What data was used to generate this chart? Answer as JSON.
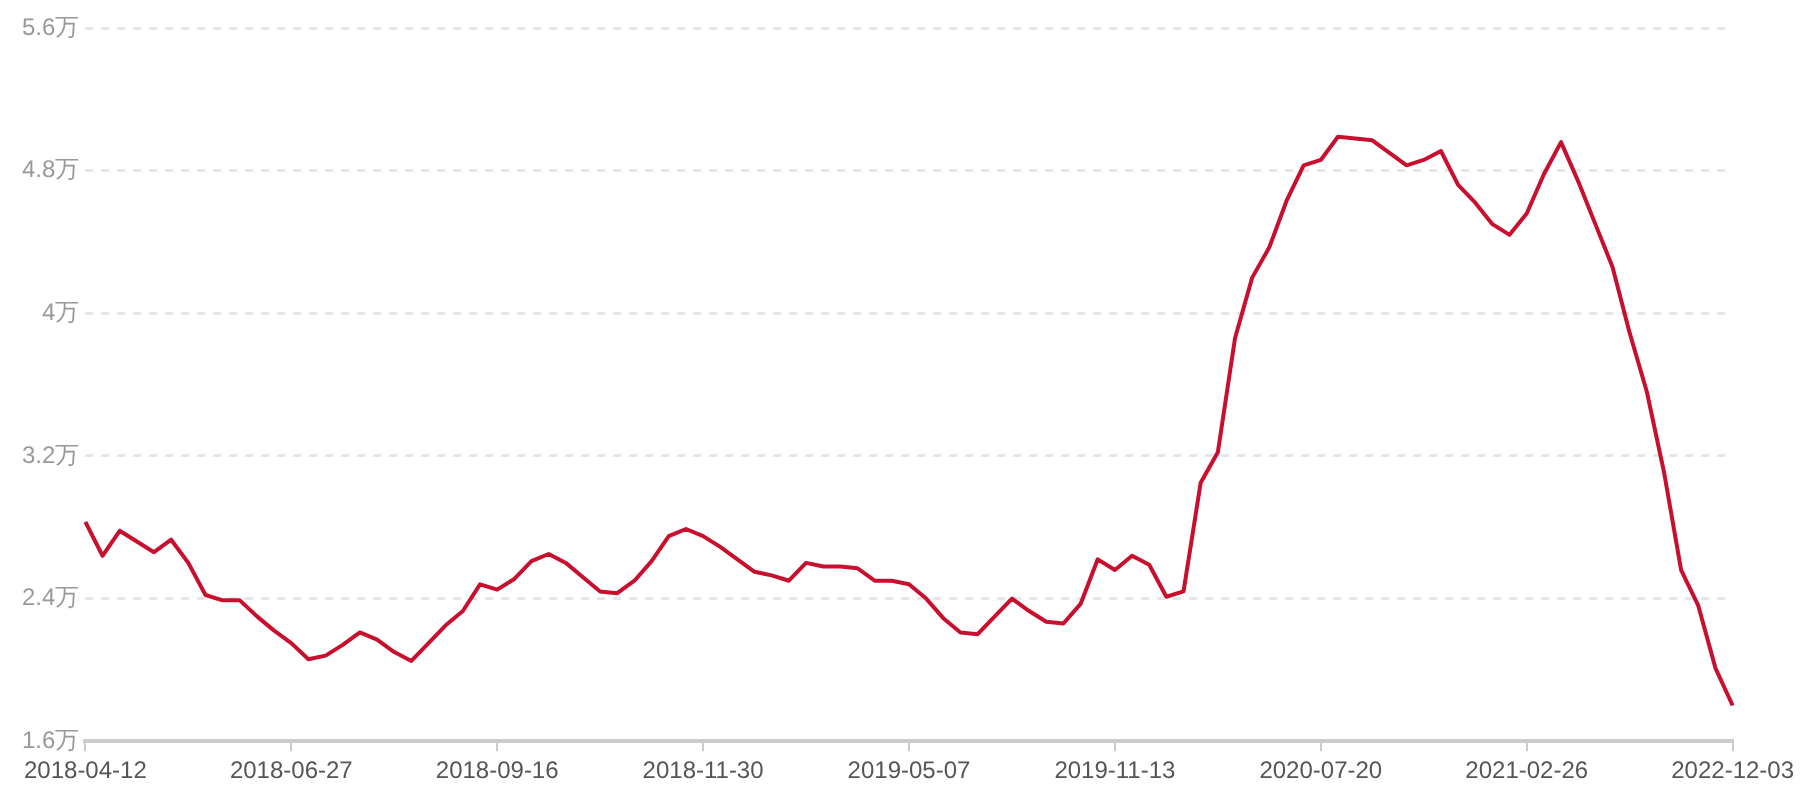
{
  "chart_data": {
    "type": "line",
    "categories": [
      "2018-04-12",
      null,
      null,
      null,
      null,
      null,
      null,
      null,
      null,
      null,
      null,
      null,
      "2018-06-27",
      null,
      null,
      null,
      null,
      null,
      null,
      null,
      null,
      null,
      null,
      null,
      "2018-09-16",
      null,
      null,
      null,
      null,
      null,
      null,
      null,
      null,
      null,
      null,
      null,
      "2018-11-30",
      null,
      null,
      null,
      null,
      null,
      null,
      null,
      null,
      null,
      null,
      null,
      "2019-05-07",
      null,
      null,
      null,
      null,
      null,
      null,
      null,
      null,
      null,
      null,
      null,
      "2019-11-13",
      null,
      null,
      null,
      null,
      null,
      null,
      null,
      null,
      null,
      null,
      null,
      "2020-07-20",
      null,
      null,
      null,
      null,
      null,
      null,
      null,
      null,
      null,
      null,
      null,
      "2021-02-26",
      null,
      null,
      null,
      null,
      null,
      null,
      null,
      null,
      null,
      null,
      null,
      "2022-12-03"
    ],
    "series": [
      {
        "color": "#c8102e",
        "values": [
          2.83,
          2.64,
          2.78,
          2.72,
          2.66,
          2.73,
          2.6,
          2.42,
          2.39,
          2.39,
          2.3,
          2.22,
          2.15,
          2.06,
          2.08,
          2.14,
          2.21,
          2.17,
          2.1,
          2.05,
          2.15,
          2.25,
          2.33,
          2.48,
          2.45,
          2.51,
          2.61,
          2.65,
          2.6,
          2.52,
          2.44,
          2.43,
          2.5,
          2.61,
          2.75,
          2.79,
          2.75,
          2.69,
          2.62,
          2.55,
          2.53,
          2.5,
          2.6,
          2.58,
          2.58,
          2.57,
          2.5,
          2.5,
          2.48,
          2.4,
          2.29,
          2.21,
          2.2,
          2.3,
          2.4,
          2.33,
          2.27,
          2.26,
          2.37,
          2.62,
          2.56,
          2.64,
          2.59,
          2.41,
          2.44,
          3.05,
          3.22,
          3.86,
          4.2,
          4.37,
          4.63,
          4.83,
          4.86,
          4.99,
          4.98,
          4.97,
          4.9,
          4.83,
          4.86,
          4.91,
          4.72,
          4.62,
          4.5,
          4.44,
          4.56,
          4.78,
          4.96,
          4.74,
          4.5,
          4.26,
          3.89,
          3.56,
          3.11,
          2.56,
          2.36,
          2.01,
          1.8
        ]
      }
    ],
    "ylim": [
      1.6,
      5.6
    ],
    "yticks": [
      {
        "value": 1.6,
        "label": "1.6万"
      },
      {
        "value": 2.4,
        "label": "2.4万"
      },
      {
        "value": 3.2,
        "label": "3.2万"
      },
      {
        "value": 4,
        "label": "4万"
      },
      {
        "value": 4.8,
        "label": "4.8万"
      },
      {
        "value": 5.6,
        "label": "5.6万"
      }
    ],
    "grid": "y",
    "legend": false
  }
}
